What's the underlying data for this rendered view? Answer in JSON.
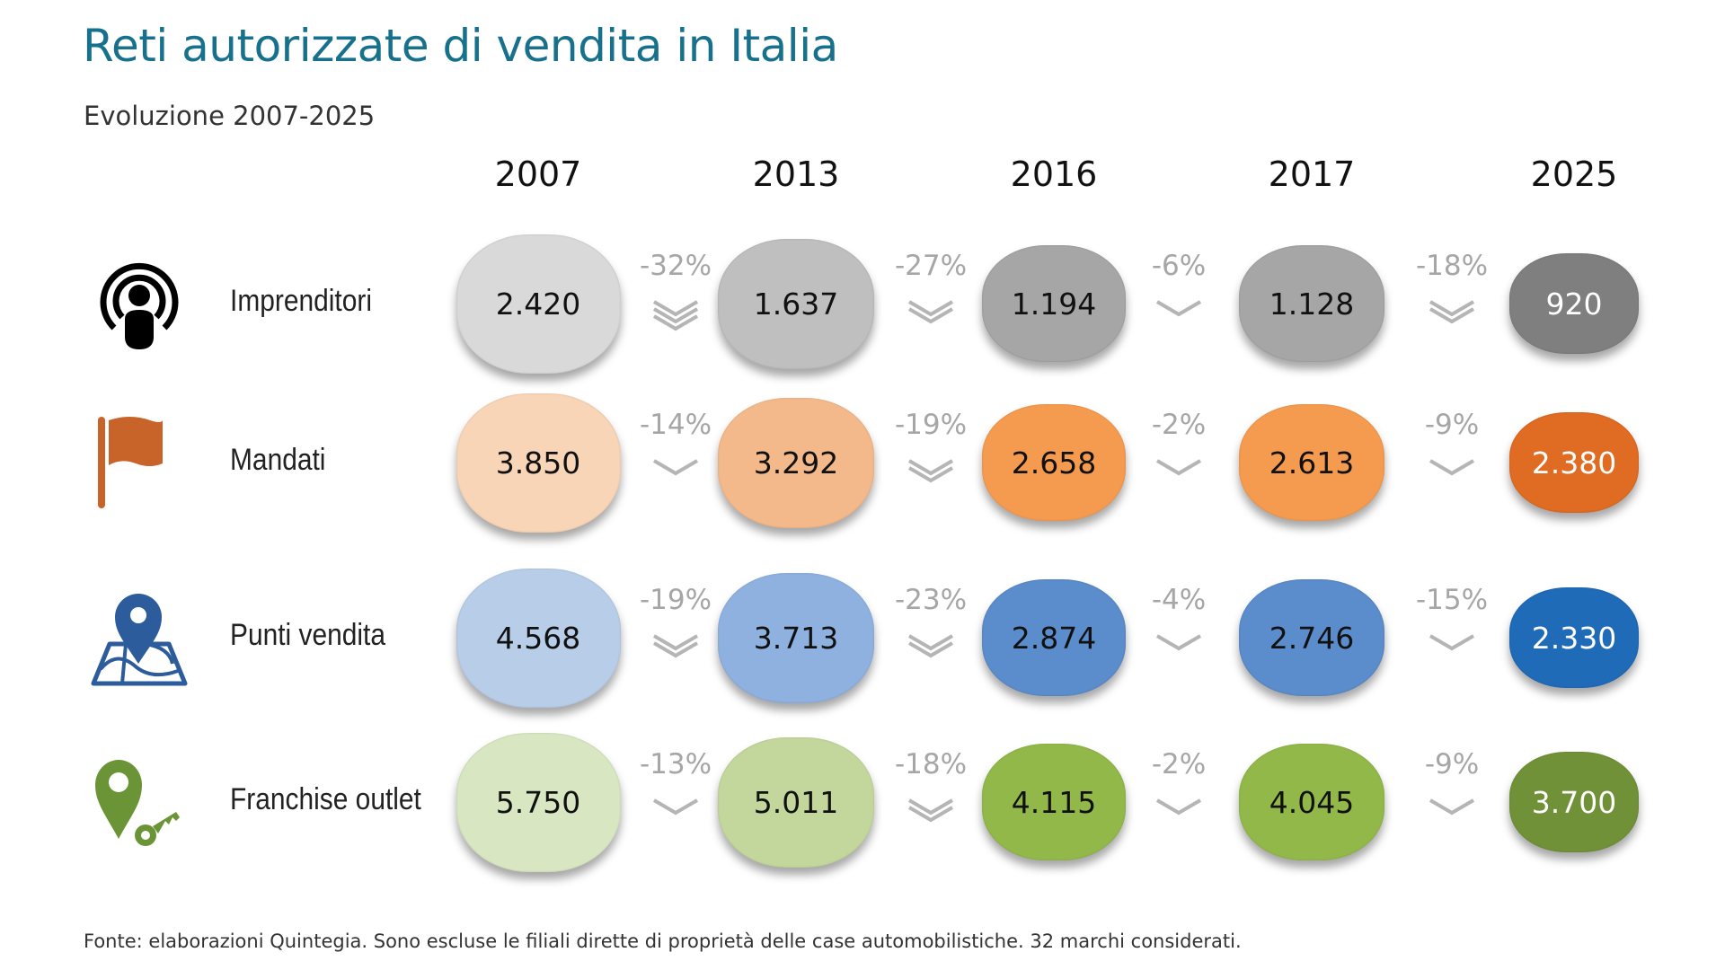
{
  "title": "Reti autorizzate di vendita in Italia",
  "subtitle": "Evoluzione 2007-2025",
  "footer": "Fonte: elaborazioni Quintegia. Sono escluse le filiali dirette di proprietà delle case automobilistiche. 32 marchi considerati.",
  "chart_data": {
    "type": "table",
    "title": "Reti autorizzate di vendita in Italia",
    "subtitle": "Evoluzione 2007-2025",
    "categories": [
      "2007",
      "2013",
      "2016",
      "2017",
      "2025"
    ],
    "series": [
      {
        "name": "Imprenditori",
        "icon": "podcast-person-icon",
        "values": [
          2420,
          1637,
          1194,
          1128,
          920
        ],
        "labels": [
          "2.420",
          "1.637",
          "1.194",
          "1.128",
          "920"
        ],
        "changes": [
          "-32%",
          "-27%",
          "-6%",
          "-18%"
        ],
        "chevrons": [
          3,
          2,
          1,
          2
        ],
        "colors": [
          "#d9d9d9",
          "#bfbfbf",
          "#a6a6a6",
          "#a6a6a6",
          "#7f7f7f"
        ],
        "text_colors": [
          "#111111",
          "#111111",
          "#111111",
          "#111111",
          "#ffffff"
        ],
        "icon_color": "#000000"
      },
      {
        "name": "Mandati",
        "icon": "flag-icon",
        "values": [
          3850,
          3292,
          2658,
          2613,
          2380
        ],
        "labels": [
          "3.850",
          "3.292",
          "2.658",
          "2.613",
          "2.380"
        ],
        "changes": [
          "-14%",
          "-19%",
          "-2%",
          "-9%"
        ],
        "chevrons": [
          1,
          2,
          1,
          1
        ],
        "colors": [
          "#f8d5b6",
          "#f4b98a",
          "#f59b50",
          "#f59b50",
          "#e06b22"
        ],
        "text_colors": [
          "#111111",
          "#111111",
          "#111111",
          "#111111",
          "#ffffff"
        ],
        "icon_color": "#c8642a"
      },
      {
        "name": "Punti vendita",
        "icon": "map-pin-icon",
        "values": [
          4568,
          3713,
          2874,
          2746,
          2330
        ],
        "labels": [
          "4.568",
          "3.713",
          "2.874",
          "2.746",
          "2.330"
        ],
        "changes": [
          "-19%",
          "-23%",
          "-4%",
          "-15%"
        ],
        "chevrons": [
          2,
          2,
          1,
          1
        ],
        "colors": [
          "#b8cde8",
          "#8fb1e0",
          "#5b8ccb",
          "#5b8ccb",
          "#1f6bb8"
        ],
        "text_colors": [
          "#111111",
          "#111111",
          "#111111",
          "#111111",
          "#ffffff"
        ],
        "icon_color": "#2c5c9c"
      },
      {
        "name": "Franchise outlet",
        "icon": "pin-key-icon",
        "values": [
          5750,
          5011,
          4115,
          4045,
          3700
        ],
        "labels": [
          "5.750",
          "5.011",
          "4.115",
          "4.045",
          "3.700"
        ],
        "changes": [
          "-13%",
          "-18%",
          "-2%",
          "-9%"
        ],
        "chevrons": [
          1,
          2,
          1,
          1
        ],
        "colors": [
          "#d8e6c2",
          "#c3d79c",
          "#92b84a",
          "#92b84a",
          "#719138"
        ],
        "text_colors": [
          "#111111",
          "#111111",
          "#111111",
          "#111111",
          "#ffffff"
        ],
        "icon_color": "#6b9436"
      }
    ],
    "change_color": "#a6a6a6",
    "title_color": "#17708c"
  }
}
